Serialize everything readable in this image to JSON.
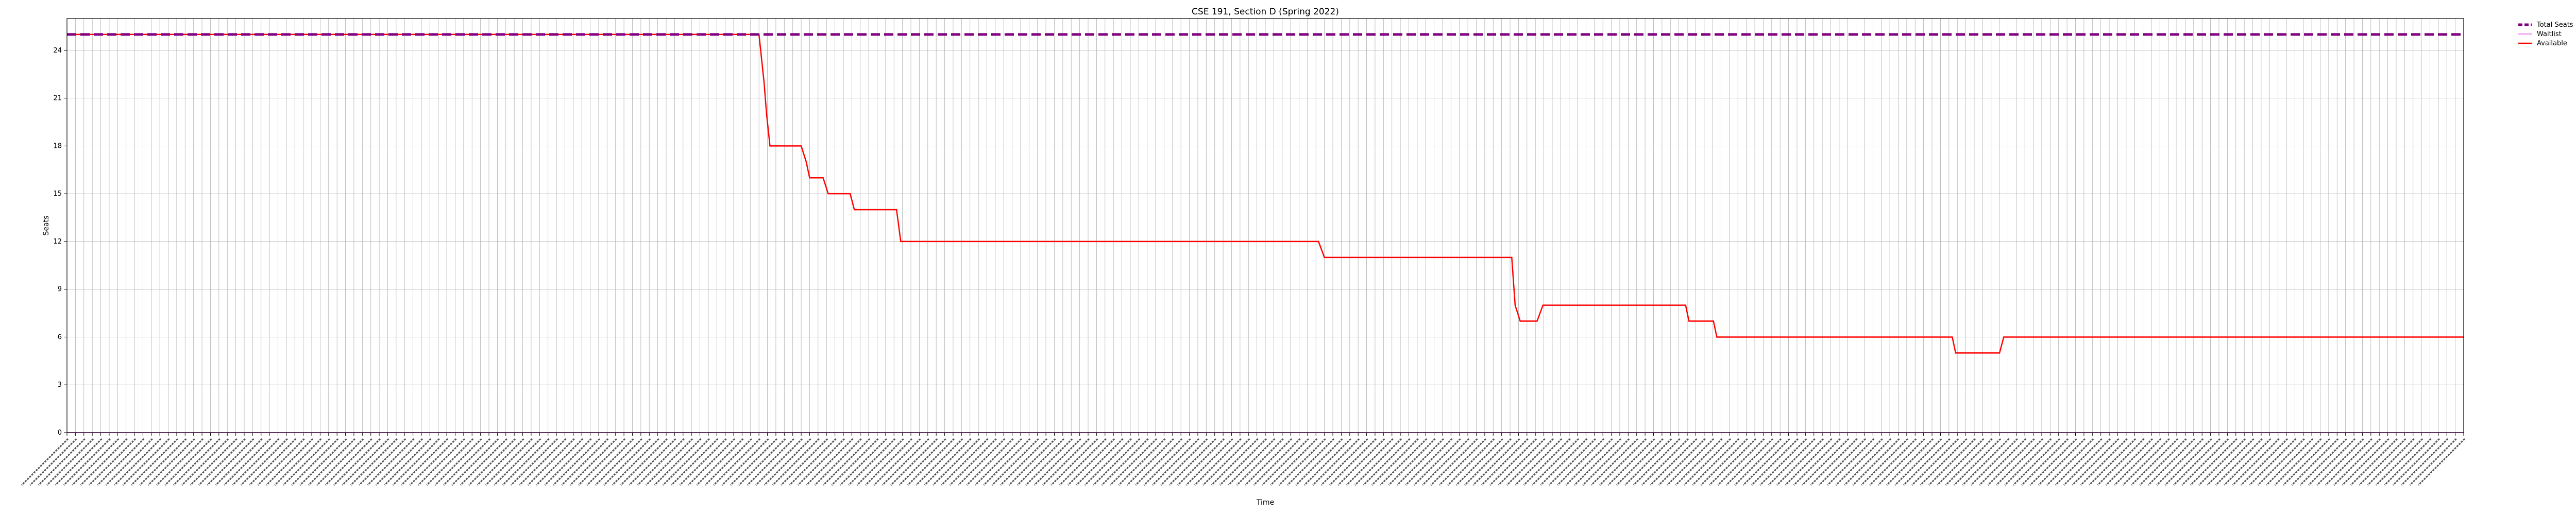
{
  "chart_data": {
    "type": "line",
    "title": "CSE 191, Section D (Spring 2022)",
    "xlabel": "Time",
    "ylabel": "Seats",
    "ylim": [
      0,
      26
    ],
    "yticks": [
      0,
      3,
      6,
      9,
      12,
      15,
      18,
      21,
      24
    ],
    "xlim": [
      0,
      284
    ],
    "x_tick_count": 285,
    "x_tick_labels_legible": false,
    "grid": true,
    "legend_placement": "outside-top-right",
    "series": [
      {
        "name": "Total Seats",
        "color": "#800080",
        "style": "dashed",
        "points": [
          [
            0,
            25
          ],
          [
            284,
            25
          ]
        ]
      },
      {
        "name": "Waitlist",
        "color": "#ee82ee",
        "style": "solid",
        "points": [
          [
            0,
            0
          ],
          [
            284,
            0
          ]
        ]
      },
      {
        "name": "Available",
        "color": "#ff0000",
        "style": "step",
        "points": [
          [
            0,
            25
          ],
          [
            82,
            25
          ],
          [
            82.6,
            22
          ],
          [
            82.9,
            20
          ],
          [
            83.3,
            18
          ],
          [
            87,
            18
          ],
          [
            87.6,
            17
          ],
          [
            88,
            16
          ],
          [
            89.6,
            16
          ],
          [
            90.2,
            15
          ],
          [
            92.8,
            15
          ],
          [
            93.3,
            14
          ],
          [
            98.3,
            14
          ],
          [
            98.8,
            12
          ],
          [
            148.3,
            12
          ],
          [
            149,
            11
          ],
          [
            171.2,
            11
          ],
          [
            171.6,
            8
          ],
          [
            172.2,
            7
          ],
          [
            174.2,
            7
          ],
          [
            174.9,
            8
          ],
          [
            191.8,
            8
          ],
          [
            192.2,
            7
          ],
          [
            195.1,
            7
          ],
          [
            195.5,
            6
          ],
          [
            223.4,
            6
          ],
          [
            223.8,
            5
          ],
          [
            229,
            5
          ],
          [
            229.5,
            6
          ],
          [
            284,
            6
          ]
        ]
      }
    ]
  }
}
